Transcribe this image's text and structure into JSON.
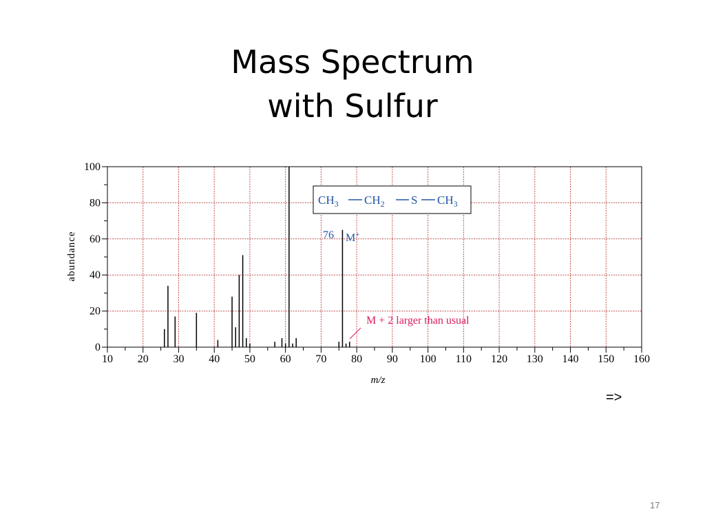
{
  "slide": {
    "title_line1": "Mass Spectrum",
    "title_line2": "with Sulfur",
    "next_arrow": "=>",
    "page_number": "17"
  },
  "colors": {
    "grid": "#c0504d",
    "peak": "#000000",
    "formula": "#2255a4",
    "annotation": "#d81b60"
  },
  "chart_data": {
    "type": "bar",
    "xlabel": "m/z",
    "ylabel": "abundance",
    "xlim": [
      10,
      160
    ],
    "ylim": [
      0,
      100
    ],
    "x_ticks": [
      10,
      20,
      30,
      40,
      50,
      60,
      70,
      80,
      90,
      100,
      110,
      120,
      130,
      140,
      150,
      160
    ],
    "y_ticks": [
      0,
      20,
      40,
      60,
      80,
      100
    ],
    "grid": true,
    "peaks": [
      {
        "mz": 26,
        "abundance": 10
      },
      {
        "mz": 27,
        "abundance": 34
      },
      {
        "mz": 29,
        "abundance": 17
      },
      {
        "mz": 35,
        "abundance": 19
      },
      {
        "mz": 41,
        "abundance": 4
      },
      {
        "mz": 45,
        "abundance": 28
      },
      {
        "mz": 46,
        "abundance": 11
      },
      {
        "mz": 47,
        "abundance": 40
      },
      {
        "mz": 48,
        "abundance": 51
      },
      {
        "mz": 49,
        "abundance": 5
      },
      {
        "mz": 50,
        "abundance": 2
      },
      {
        "mz": 57,
        "abundance": 3
      },
      {
        "mz": 59,
        "abundance": 5
      },
      {
        "mz": 60,
        "abundance": 2
      },
      {
        "mz": 61,
        "abundance": 100
      },
      {
        "mz": 62,
        "abundance": 2
      },
      {
        "mz": 63,
        "abundance": 5
      },
      {
        "mz": 75,
        "abundance": 3
      },
      {
        "mz": 76,
        "abundance": 65
      },
      {
        "mz": 77,
        "abundance": 2
      },
      {
        "mz": 78,
        "abundance": 3
      }
    ],
    "annotations": {
      "molecular_ion_mz": "76",
      "molecular_ion_label": "M",
      "molecular_ion_charge": "+",
      "m_plus_2_note": "M + 2 larger than usual",
      "formula": {
        "ch3_left": "CH",
        "sub3_left": "3",
        "ch2": "CH",
        "sub2": "2",
        "s": "S",
        "ch3_right": "CH",
        "sub3_right": "3"
      }
    }
  }
}
